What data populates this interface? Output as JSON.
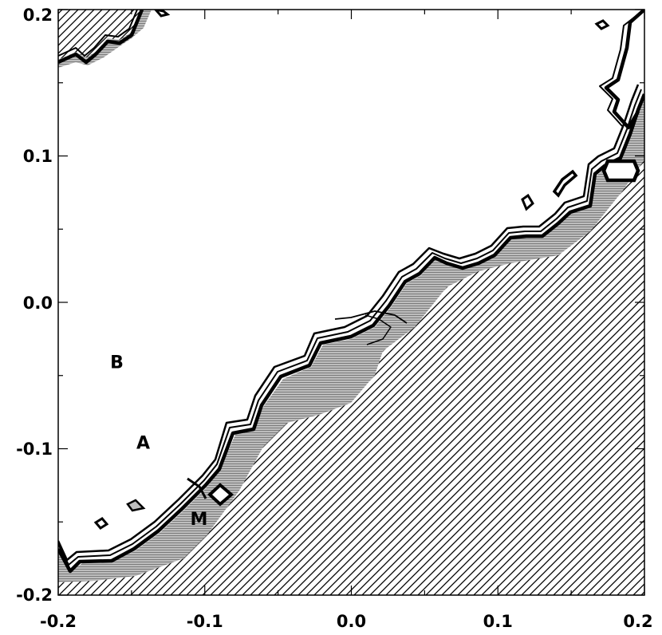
{
  "chart_data": {
    "type": "contour",
    "xlim": [
      -0.2,
      0.2
    ],
    "ylim": [
      -0.2,
      0.2
    ],
    "x_ticks": [
      -0.2,
      -0.1,
      0.0,
      0.1,
      0.2
    ],
    "y_ticks": [
      -0.2,
      -0.1,
      0.0,
      0.1,
      0.2
    ],
    "x_tick_labels": [
      "-0.2",
      "-0.1",
      "0.0",
      "0.1",
      "0.2"
    ],
    "y_tick_labels": [
      "-0.2",
      "-0.1",
      "0.0",
      "0.1",
      "0.2"
    ],
    "grid": false,
    "boundary": [
      [
        -0.2,
        -0.19
      ],
      [
        -0.192,
        -0.191
      ],
      [
        -0.18,
        -0.19
      ],
      [
        -0.162,
        -0.18
      ],
      [
        -0.15,
        -0.175
      ],
      [
        -0.135,
        -0.165
      ],
      [
        -0.12,
        -0.16
      ],
      [
        -0.105,
        -0.145
      ],
      [
        -0.1,
        -0.135
      ],
      [
        -0.092,
        -0.115
      ],
      [
        -0.085,
        -0.1
      ],
      [
        -0.078,
        -0.09
      ],
      [
        -0.068,
        -0.088
      ],
      [
        -0.058,
        -0.06
      ],
      [
        -0.05,
        -0.05
      ],
      [
        -0.038,
        -0.048
      ],
      [
        -0.033,
        -0.03
      ],
      [
        -0.015,
        -0.02
      ],
      [
        -0.008,
        -0.01
      ],
      [
        0.006,
        -0.007
      ],
      [
        0.012,
        0.0
      ],
      [
        0.022,
        0.005
      ],
      [
        0.027,
        0.015
      ],
      [
        0.035,
        0.025
      ],
      [
        0.04,
        0.03
      ],
      [
        0.06,
        0.03
      ],
      [
        0.075,
        0.027
      ],
      [
        0.086,
        0.03
      ],
      [
        0.095,
        0.034
      ],
      [
        0.11,
        0.035
      ],
      [
        0.125,
        0.037
      ],
      [
        0.135,
        0.045
      ],
      [
        0.148,
        0.06
      ],
      [
        0.16,
        0.063
      ],
      [
        0.165,
        0.07
      ],
      [
        0.172,
        0.085
      ],
      [
        0.18,
        0.095
      ],
      [
        0.188,
        0.102
      ],
      [
        0.195,
        0.11
      ],
      [
        0.2,
        0.118
      ]
    ],
    "annotations": [
      {
        "text": "B",
        "x": -0.16,
        "y": -0.045
      },
      {
        "text": "A",
        "x": -0.142,
        "y": -0.1
      },
      {
        "text": "M",
        "x": -0.104,
        "y": -0.152
      }
    ]
  }
}
